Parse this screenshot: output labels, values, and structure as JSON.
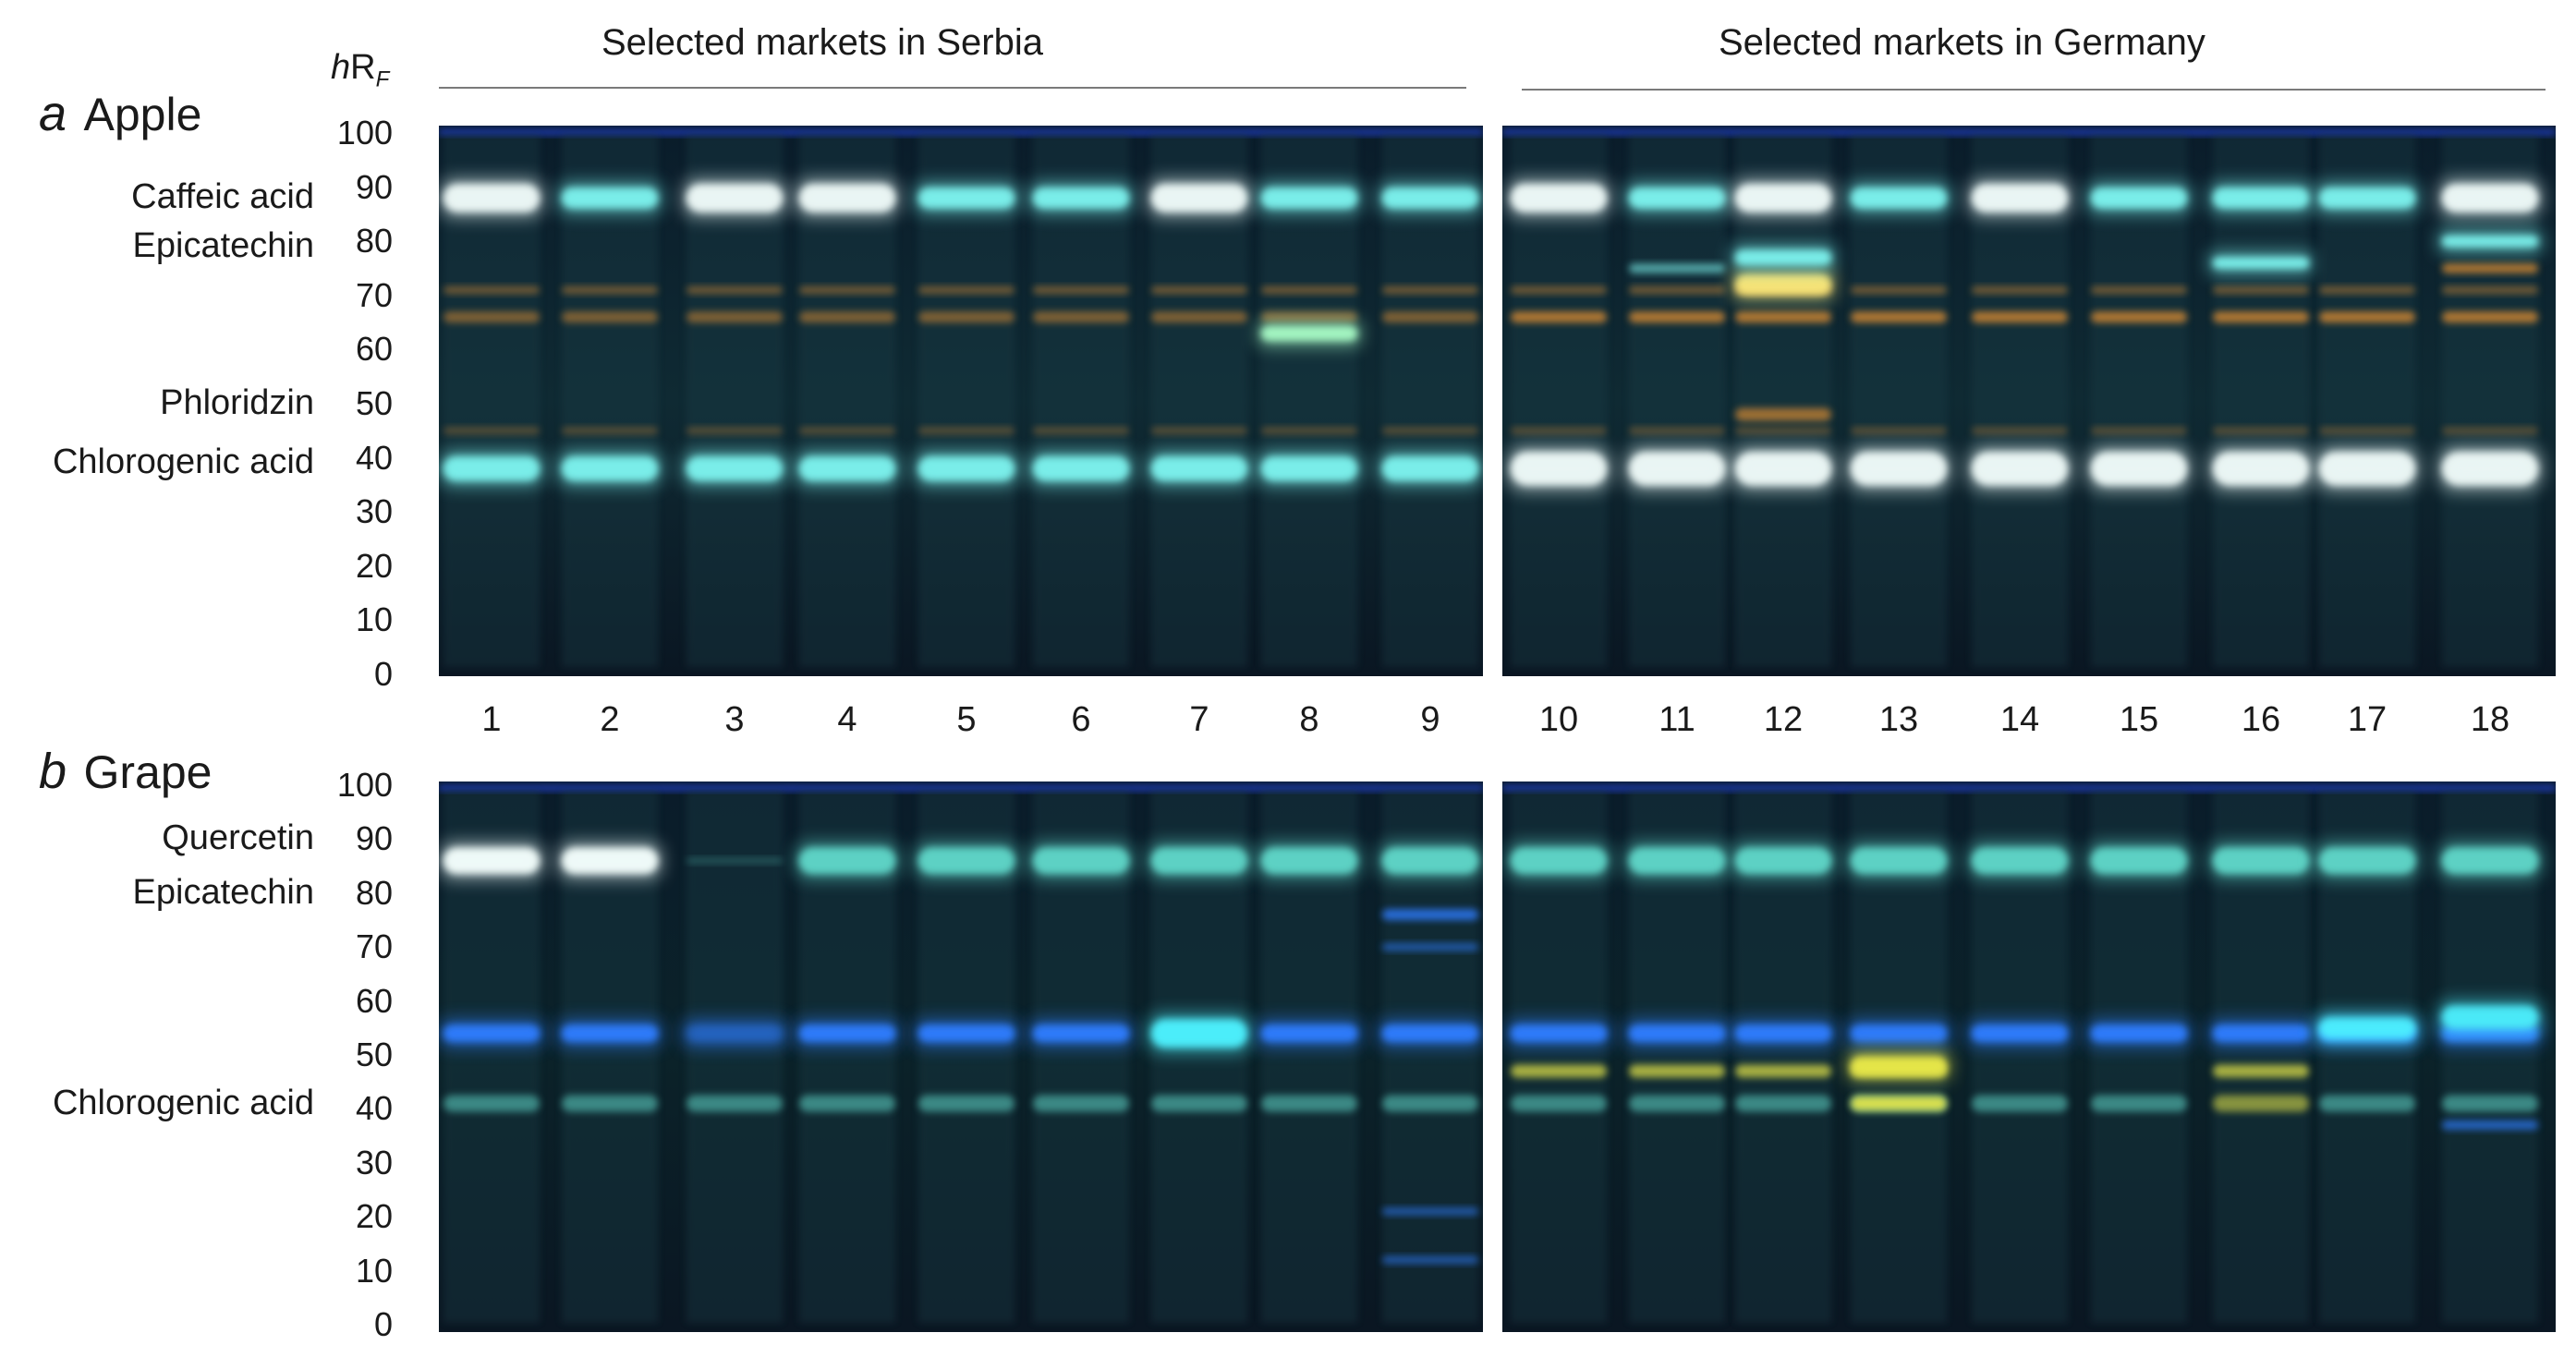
{
  "headers": {
    "serbia": "Selected markets in Serbia",
    "germany": "Selected markets in Germany"
  },
  "hrf_label": {
    "h": "h",
    "R": "R",
    "F": "F"
  },
  "lanes": [
    "1",
    "2",
    "3",
    "4",
    "5",
    "6",
    "7",
    "8",
    "9",
    "10",
    "11",
    "12",
    "13",
    "14",
    "15",
    "16",
    "17",
    "18"
  ],
  "panels": [
    {
      "letter": "a",
      "name": "Apple",
      "ticks": [
        "100",
        "90",
        "80",
        "70",
        "60",
        "50",
        "40",
        "30",
        "20",
        "10",
        "0"
      ],
      "compounds": [
        {
          "label": "Caffeic acid",
          "hrf": 88
        },
        {
          "label": "Epicatechin",
          "hrf": 79
        },
        {
          "label": "Phloridzin",
          "hrf": 50
        },
        {
          "label": "Chlorogenic acid",
          "hrf": 39
        }
      ],
      "colors": {
        "plate_bg": "#0d1f2c",
        "cyan_band": "#7ff7f2",
        "white_band": "#f4fffd",
        "orange_band": "#d98a33",
        "front_line": "#3355ff"
      }
    },
    {
      "letter": "b",
      "name": "Grape",
      "ticks": [
        "100",
        "90",
        "80",
        "70",
        "60",
        "50",
        "40",
        "30",
        "20",
        "10",
        "0"
      ],
      "compounds": [
        {
          "label": "Quercetin",
          "hrf": 90
        },
        {
          "label": "Epicatechin",
          "hrf": 80
        },
        {
          "label": "Chlorogenic acid",
          "hrf": 41
        }
      ],
      "colors": {
        "plate_bg": "#0a1a22",
        "cyan_band": "#8ff8e6",
        "blue_band": "#2f7dff",
        "yellow_band": "#e8e84a",
        "front_line": "#3355ff"
      }
    }
  ]
}
